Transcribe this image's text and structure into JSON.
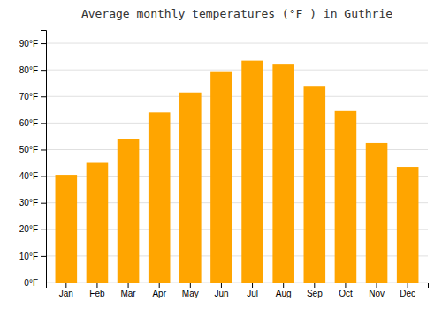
{
  "chart_data": {
    "type": "bar",
    "title": "Average monthly temperatures (°F ) in Guthrie",
    "categories": [
      "Jan",
      "Feb",
      "Mar",
      "Apr",
      "May",
      "Jun",
      "Jul",
      "Aug",
      "Sep",
      "Oct",
      "Nov",
      "Dec"
    ],
    "values": [
      40.5,
      45.0,
      54.0,
      64.0,
      71.5,
      79.5,
      83.5,
      82.0,
      74.0,
      64.5,
      52.5,
      43.5
    ],
    "color": "#FFA500",
    "ylim": [
      0,
      95
    ],
    "yticks": [
      {
        "value": 0,
        "label": "0°F"
      },
      {
        "value": 10,
        "label": "10°F"
      },
      {
        "value": 20,
        "label": "20°F"
      },
      {
        "value": 30,
        "label": "30°F"
      },
      {
        "value": 40,
        "label": "40°F"
      },
      {
        "value": 50,
        "label": "50°F"
      },
      {
        "value": 60,
        "label": "60°F"
      },
      {
        "value": 70,
        "label": "70°F"
      },
      {
        "value": 80,
        "label": "80°F"
      },
      {
        "value": 90,
        "label": "90°F"
      }
    ],
    "grid": true
  }
}
